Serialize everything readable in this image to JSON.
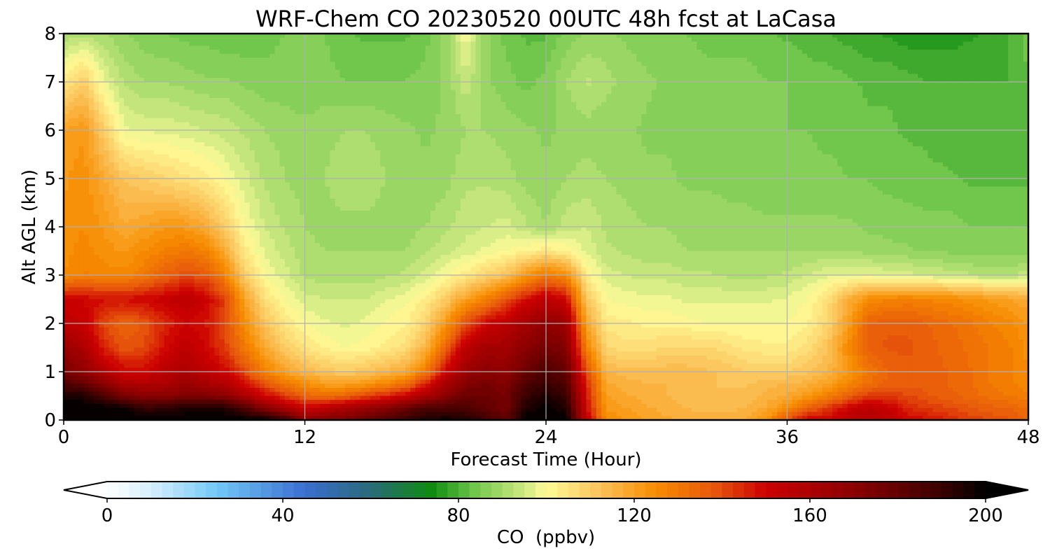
{
  "chart_data": {
    "type": "heatmap",
    "title": "WRF-Chem CO  20230520 00UTC 48h fcst at LaCasa",
    "xlabel": "Forecast Time (Hour)",
    "ylabel": "Alt AGL (km)",
    "xlim": [
      0,
      48
    ],
    "ylim": [
      0,
      8
    ],
    "grid": true,
    "x_ticks": [
      0,
      12,
      24,
      36,
      48
    ],
    "y_ticks": [
      0,
      1,
      2,
      3,
      4,
      5,
      6,
      7,
      8
    ],
    "x_tick_labels": [
      "0",
      "12",
      "24",
      "36",
      "48"
    ],
    "y_tick_labels": [
      "0",
      "1",
      "2",
      "3",
      "4",
      "5",
      "6",
      "7",
      "8"
    ],
    "colorbar": {
      "label": "CO  (ppbv)",
      "range": [
        0,
        200
      ],
      "extend": "both",
      "ticks": [
        0,
        40,
        80,
        120,
        160,
        200
      ],
      "tick_labels": [
        "0",
        "40",
        "80",
        "120",
        "160",
        "200"
      ],
      "levels_step": 2.5,
      "color_stops": [
        {
          "v": 0,
          "c": "#ffffff"
        },
        {
          "v": 10,
          "c": "#d6eefc"
        },
        {
          "v": 25,
          "c": "#72c8f7"
        },
        {
          "v": 45,
          "c": "#3a6ed0"
        },
        {
          "v": 60,
          "c": "#2a6a78"
        },
        {
          "v": 74,
          "c": "#0f8c10"
        },
        {
          "v": 84,
          "c": "#74c84e"
        },
        {
          "v": 95,
          "c": "#cde982"
        },
        {
          "v": 100,
          "c": "#fffc98"
        },
        {
          "v": 112,
          "c": "#fbc35a"
        },
        {
          "v": 125,
          "c": "#f78c00"
        },
        {
          "v": 138,
          "c": "#e8580c"
        },
        {
          "v": 150,
          "c": "#cc0000"
        },
        {
          "v": 170,
          "c": "#8b0000"
        },
        {
          "v": 190,
          "c": "#3a0000"
        },
        {
          "v": 200,
          "c": "#000000"
        }
      ]
    },
    "x": [
      0,
      1,
      2,
      3,
      4,
      5,
      6,
      7,
      8,
      9,
      10,
      11,
      12,
      13,
      14,
      15,
      16,
      17,
      18,
      19,
      20,
      21,
      22,
      23,
      24,
      25,
      26,
      27,
      28,
      29,
      30,
      31,
      32,
      33,
      34,
      35,
      36,
      37,
      38,
      39,
      40,
      41,
      42,
      43,
      44,
      45,
      46,
      47,
      48
    ],
    "y": [
      0,
      0.25,
      0.5,
      0.75,
      1,
      1.5,
      2,
      2.5,
      3,
      3.5,
      4,
      5,
      6,
      7,
      8
    ],
    "values": [
      [
        200,
        200,
        200,
        200,
        200,
        200,
        200,
        200,
        200,
        200,
        200,
        190,
        170,
        172,
        175,
        180,
        185,
        190,
        195,
        198,
        195,
        190,
        180,
        200,
        200,
        200,
        155,
        125,
        122,
        120,
        118,
        117,
        116,
        116,
        118,
        124,
        138,
        150,
        150,
        155,
        158,
        155,
        150,
        148,
        145,
        142,
        140,
        138,
        135
      ],
      [
        200,
        200,
        200,
        198,
        190,
        192,
        195,
        195,
        195,
        185,
        170,
        160,
        150,
        155,
        160,
        165,
        170,
        178,
        185,
        185,
        185,
        180,
        175,
        195,
        200,
        195,
        150,
        122,
        120,
        118,
        116,
        115,
        114,
        114,
        115,
        118,
        125,
        135,
        142,
        150,
        155,
        152,
        145,
        142,
        140,
        138,
        136,
        135,
        132
      ],
      [
        195,
        195,
        185,
        175,
        170,
        170,
        172,
        172,
        170,
        160,
        150,
        142,
        135,
        132,
        135,
        140,
        145,
        150,
        160,
        170,
        178,
        178,
        175,
        190,
        195,
        190,
        148,
        120,
        118,
        116,
        115,
        114,
        113,
        113,
        114,
        116,
        118,
        122,
        128,
        135,
        142,
        142,
        140,
        138,
        136,
        134,
        132,
        130,
        128
      ],
      [
        185,
        180,
        170,
        160,
        158,
        160,
        165,
        162,
        158,
        148,
        138,
        130,
        125,
        120,
        120,
        122,
        126,
        132,
        145,
        162,
        172,
        175,
        172,
        185,
        190,
        185,
        145,
        118,
        116,
        115,
        115,
        114,
        113,
        112,
        112,
        114,
        115,
        116,
        120,
        126,
        132,
        136,
        137,
        136,
        135,
        133,
        130,
        128,
        126
      ],
      [
        175,
        168,
        158,
        150,
        150,
        155,
        160,
        155,
        150,
        140,
        128,
        120,
        115,
        112,
        110,
        112,
        115,
        118,
        130,
        150,
        165,
        170,
        168,
        178,
        185,
        180,
        140,
        115,
        114,
        114,
        114,
        114,
        113,
        112,
        110,
        110,
        110,
        112,
        115,
        122,
        130,
        135,
        137,
        136,
        135,
        133,
        130,
        128,
        125
      ],
      [
        165,
        160,
        145,
        138,
        140,
        148,
        155,
        150,
        142,
        130,
        118,
        110,
        105,
        102,
        100,
        101,
        103,
        106,
        115,
        135,
        155,
        162,
        162,
        170,
        175,
        172,
        128,
        108,
        106,
        106,
        108,
        108,
        108,
        106,
        104,
        103,
        103,
        106,
        112,
        125,
        136,
        138,
        138,
        136,
        134,
        132,
        130,
        128,
        124
      ],
      [
        155,
        152,
        140,
        135,
        138,
        145,
        150,
        148,
        140,
        125,
        112,
        105,
        100,
        98,
        97,
        98,
        100,
        102,
        108,
        122,
        140,
        150,
        155,
        162,
        168,
        165,
        120,
        104,
        103,
        102,
        102,
        101,
        100,
        100,
        100,
        100,
        100,
        102,
        108,
        120,
        135,
        137,
        137,
        135,
        133,
        131,
        128,
        126,
        122
      ],
      [
        150,
        150,
        148,
        148,
        150,
        152,
        155,
        152,
        142,
        120,
        106,
        100,
        96,
        95,
        95,
        95,
        97,
        99,
        103,
        110,
        120,
        128,
        138,
        148,
        155,
        150,
        112,
        100,
        99,
        98,
        98,
        97,
        97,
        97,
        97,
        97,
        98,
        100,
        106,
        116,
        125,
        127,
        128,
        127,
        126,
        124,
        122,
        120,
        118
      ],
      [
        125,
        128,
        126,
        126,
        130,
        135,
        140,
        138,
        128,
        110,
        100,
        96,
        92,
        91,
        91,
        91,
        92,
        93,
        96,
        100,
        104,
        108,
        112,
        122,
        130,
        125,
        103,
        96,
        95,
        94,
        94,
        93,
        93,
        92,
        92,
        92,
        93,
        95,
        97,
        98,
        98,
        97,
        96,
        95,
        94,
        93,
        92,
        92,
        94
      ],
      [
        124,
        126,
        124,
        122,
        125,
        128,
        130,
        128,
        118,
        104,
        97,
        94,
        91,
        90,
        90,
        90,
        90,
        90,
        92,
        94,
        96,
        98,
        100,
        102,
        104,
        102,
        97,
        93,
        92,
        91,
        91,
        90,
        90,
        90,
        90,
        90,
        90,
        90,
        90,
        90,
        89,
        88,
        88,
        87,
        87,
        86,
        86,
        86,
        86
      ],
      [
        123,
        125,
        122,
        118,
        120,
        122,
        122,
        118,
        110,
        100,
        95,
        92,
        90,
        89,
        89,
        89,
        89,
        89,
        90,
        92,
        94,
        95,
        96,
        93,
        90,
        94,
        95,
        92,
        91,
        90,
        90,
        89,
        89,
        88,
        88,
        88,
        88,
        88,
        88,
        88,
        87,
        87,
        86,
        86,
        86,
        85,
        85,
        85,
        85
      ],
      [
        122,
        124,
        118,
        112,
        110,
        108,
        106,
        104,
        100,
        96,
        92,
        90,
        89,
        90,
        92,
        92,
        90,
        89,
        88,
        89,
        92,
        92,
        91,
        89,
        88,
        90,
        91,
        90,
        89,
        88,
        88,
        87,
        87,
        87,
        87,
        86,
        86,
        86,
        86,
        85,
        85,
        84,
        84,
        83,
        83,
        82,
        82,
        82,
        82
      ],
      [
        120,
        122,
        110,
        98,
        97,
        97,
        96,
        95,
        94,
        92,
        90,
        89,
        88,
        89,
        90,
        90,
        89,
        88,
        87,
        88,
        90,
        90,
        89,
        88,
        87,
        88,
        89,
        88,
        88,
        87,
        87,
        87,
        86,
        86,
        86,
        85,
        85,
        85,
        84,
        84,
        83,
        83,
        82,
        82,
        81,
        81,
        81,
        81,
        82
      ],
      [
        104,
        110,
        98,
        92,
        90,
        90,
        89,
        88,
        88,
        87,
        86,
        86,
        86,
        86,
        85,
        85,
        85,
        85,
        86,
        88,
        94,
        88,
        86,
        84,
        86,
        90,
        93,
        91,
        89,
        88,
        87,
        87,
        86,
        86,
        86,
        85,
        85,
        84,
        84,
        83,
        82,
        82,
        81,
        80,
        80,
        80,
        80,
        80,
        82
      ],
      [
        90,
        92,
        90,
        88,
        86,
        85,
        84,
        84,
        83,
        83,
        84,
        85,
        86,
        85,
        83,
        82,
        82,
        82,
        84,
        88,
        100,
        88,
        84,
        82,
        82,
        86,
        88,
        88,
        87,
        86,
        85,
        85,
        84,
        84,
        84,
        83,
        82,
        81,
        80,
        79,
        78,
        77,
        76,
        76,
        76,
        77,
        78,
        80,
        84
      ]
    ]
  }
}
